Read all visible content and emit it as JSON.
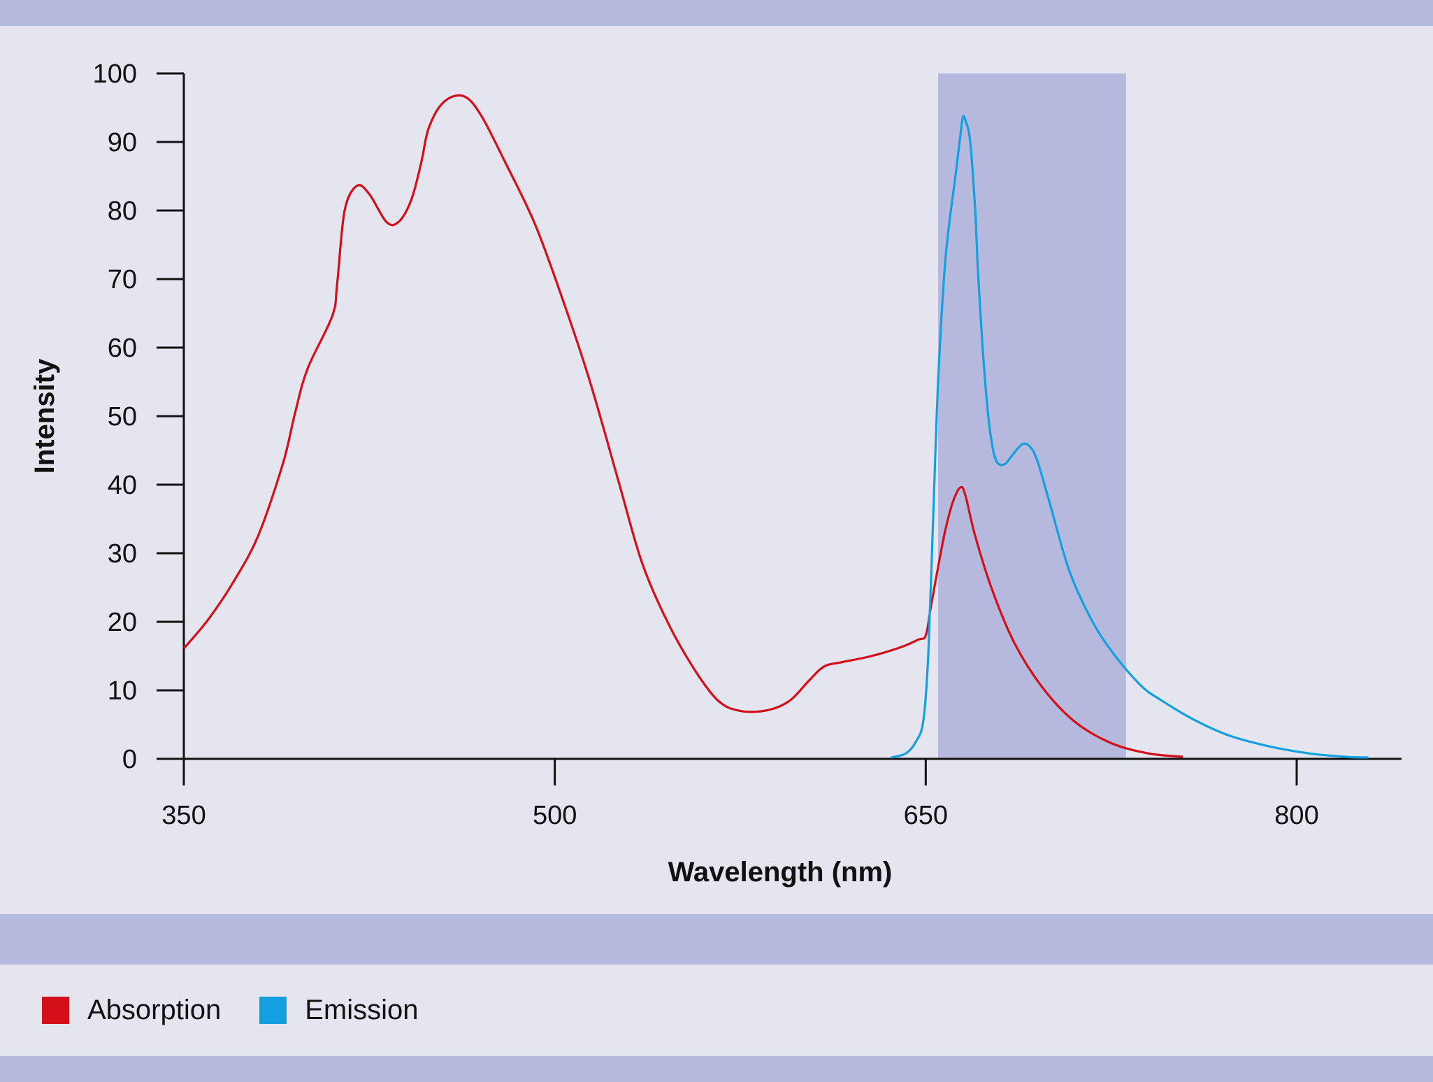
{
  "colors": {
    "background": "#e5e5f0",
    "band": "#b6b9de",
    "absorption": "#d40f19",
    "emission": "#149fe0",
    "highlight": "#b6b9de"
  },
  "chart_data": {
    "type": "line",
    "title": "",
    "xlabel": "Wavelength (nm)",
    "ylabel": "Intensity",
    "xlim": [
      350,
      843
    ],
    "ylim": [
      0,
      100
    ],
    "x_ticks": [
      350,
      500,
      650,
      800
    ],
    "y_ticks": [
      0,
      10,
      20,
      30,
      40,
      50,
      60,
      70,
      80,
      90,
      100
    ],
    "grid": false,
    "legend_position": "bottom-left",
    "highlight_band": {
      "x": [
        655,
        731
      ],
      "y": [
        0,
        100
      ]
    },
    "series": [
      {
        "name": "Absorption",
        "color": "#d40f19",
        "points": [
          [
            350,
            16.1
          ],
          [
            360,
            20.4
          ],
          [
            370,
            25.8
          ],
          [
            380,
            32.5
          ],
          [
            390,
            43.0
          ],
          [
            395,
            50.5
          ],
          [
            400,
            56.9
          ],
          [
            410,
            64.6
          ],
          [
            412,
            69.3
          ],
          [
            415,
            80.0
          ],
          [
            420,
            83.6
          ],
          [
            425,
            82.4
          ],
          [
            432,
            78.3
          ],
          [
            437,
            78.4
          ],
          [
            442,
            81.6
          ],
          [
            446,
            87.0
          ],
          [
            449,
            92.0
          ],
          [
            455,
            95.8
          ],
          [
            463,
            96.7
          ],
          [
            470,
            94.0
          ],
          [
            480,
            87.0
          ],
          [
            492,
            78.0
          ],
          [
            503,
            67.2
          ],
          [
            514,
            55.3
          ],
          [
            526,
            40.2
          ],
          [
            535,
            28.9
          ],
          [
            545,
            20.4
          ],
          [
            556,
            13.3
          ],
          [
            566,
            8.5
          ],
          [
            575,
            7.0
          ],
          [
            586,
            7.1
          ],
          [
            595,
            8.5
          ],
          [
            603,
            11.5
          ],
          [
            609,
            13.5
          ],
          [
            616,
            14.1
          ],
          [
            628,
            15.0
          ],
          [
            640,
            16.3
          ],
          [
            647,
            17.4
          ],
          [
            650,
            18.0
          ],
          [
            652,
            22.0
          ],
          [
            655,
            28.0
          ],
          [
            658,
            33.5
          ],
          [
            661,
            37.5
          ],
          [
            664,
            39.6
          ],
          [
            666,
            38.5
          ],
          [
            670,
            32.5
          ],
          [
            677,
            24.5
          ],
          [
            686,
            16.8
          ],
          [
            697,
            10.5
          ],
          [
            710,
            5.5
          ],
          [
            725,
            2.3
          ],
          [
            740,
            0.8
          ],
          [
            754,
            0.3
          ]
        ]
      },
      {
        "name": "Emission",
        "color": "#149fe0",
        "points": [
          [
            636,
            0.2
          ],
          [
            642,
            0.8
          ],
          [
            646,
            2.5
          ],
          [
            649,
            5.5
          ],
          [
            651,
            15.0
          ],
          [
            653,
            35.0
          ],
          [
            655,
            55.0
          ],
          [
            658,
            73.0
          ],
          [
            662,
            85.0
          ],
          [
            664,
            91.0
          ],
          [
            665,
            93.6
          ],
          [
            666,
            93.2
          ],
          [
            668,
            90.0
          ],
          [
            670,
            80.0
          ],
          [
            671,
            72.0
          ],
          [
            673,
            60.0
          ],
          [
            675,
            51.0
          ],
          [
            677,
            45.5
          ],
          [
            679,
            43.2
          ],
          [
            682,
            43.0
          ],
          [
            685,
            44.3
          ],
          [
            689,
            45.9
          ],
          [
            692,
            45.6
          ],
          [
            695,
            43.6
          ],
          [
            700,
            37.5
          ],
          [
            708,
            27.5
          ],
          [
            717,
            20.3
          ],
          [
            726,
            15.3
          ],
          [
            737,
            10.7
          ],
          [
            745,
            8.6
          ],
          [
            758,
            5.8
          ],
          [
            772,
            3.5
          ],
          [
            788,
            1.9
          ],
          [
            805,
            0.8
          ],
          [
            820,
            0.3
          ],
          [
            829,
            0.2
          ]
        ]
      }
    ]
  }
}
